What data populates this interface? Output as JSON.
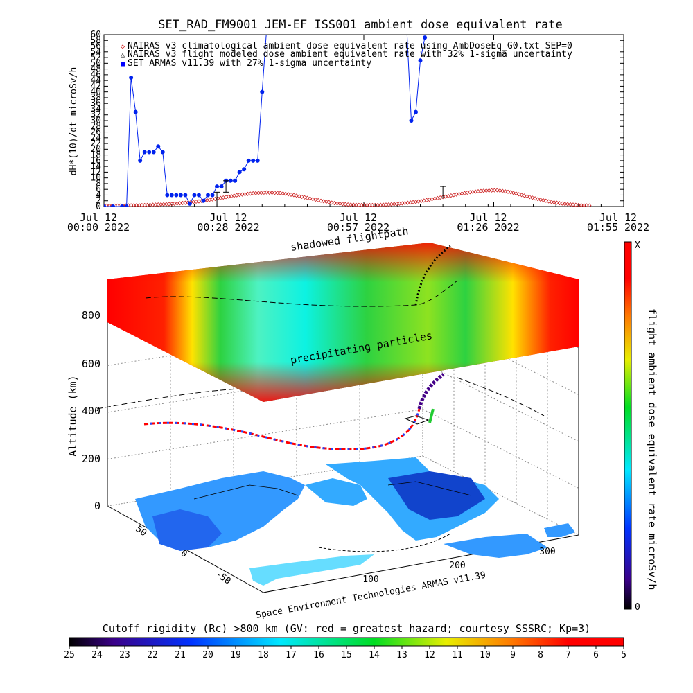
{
  "chart_data": [
    {
      "type": "line",
      "title": "SET_RAD_FM9001  JEM-EF ISS001 ambient dose equivalent rate",
      "ylabel": "dH*(10)/dt microSv/h",
      "ylim": [
        0,
        60
      ],
      "y_ticks": [
        "0",
        "2",
        "4",
        "6",
        "8",
        "10",
        "12",
        "14",
        "16",
        "18",
        "20",
        "22",
        "24",
        "26",
        "28",
        "30",
        "32",
        "34",
        "36",
        "38",
        "40",
        "42",
        "44",
        "46",
        "48",
        "50",
        "52",
        "54",
        "56",
        "58",
        "60"
      ],
      "x_tick_labels": [
        {
          "line1": "Jul 12",
          "line2": "00:00 2022"
        },
        {
          "line1": "Jul 12",
          "line2": "00:28 2022"
        },
        {
          "line1": "Jul 12",
          "line2": "00:57 2022"
        },
        {
          "line1": "Jul 12",
          "line2": "01:26 2022"
        },
        {
          "line1": "Jul 12",
          "line2": "01:55 2022"
        }
      ],
      "xlim_minutes": [
        0,
        115
      ],
      "legend": [
        {
          "symbol": "◇",
          "text": "NAIRAS v3 climatological ambient dose equivalent rate using AmbDoseEq_G0.txt SEP=0",
          "color": "#cc0000"
        },
        {
          "symbol": "△",
          "text": "NAIRAS v3 flight modeled dose ambient equivalent rate with 32% 1-sigma uncertainty",
          "color": "#000000"
        },
        {
          "symbol": "■",
          "text": "SET ARMAS v11.39 with 27% 1-sigma uncertainty",
          "color": "#0000ff"
        }
      ],
      "series": [
        {
          "name": "SET ARMAS v11.39 with 27% 1-sigma uncertainty",
          "color": "#0022ee",
          "x": [
            0,
            2,
            4,
            5,
            6,
            7,
            8,
            9,
            10,
            11,
            12,
            13,
            14,
            15,
            16,
            17,
            18,
            19,
            20,
            21,
            22,
            23,
            24,
            25,
            26,
            27,
            28,
            29,
            30,
            31,
            32,
            33,
            34,
            35,
            36,
            37,
            38,
            39,
            40,
            41,
            42,
            43,
            44,
            45,
            46,
            67,
            68,
            69,
            70,
            71,
            72,
            73
          ],
          "y": [
            0,
            0,
            0,
            0,
            45,
            33,
            16,
            19,
            19,
            19,
            21,
            19,
            4,
            4,
            4,
            4,
            4,
            1,
            4,
            4,
            2,
            4,
            4,
            7,
            7,
            9,
            9,
            9,
            12,
            13,
            16,
            16,
            16,
            40,
            62,
            62,
            62,
            62,
            62,
            62,
            62,
            62,
            62,
            62,
            62,
            62,
            30,
            33,
            51,
            59,
            62,
            62
          ]
        },
        {
          "name": "NAIRAS v3 climatological ambient dose equivalent rate using AmbDoseEq_G0.txt SEP=0",
          "color": "#cc2222",
          "x": [
            0,
            3,
            6,
            9,
            12,
            15,
            18,
            21,
            24,
            27,
            30,
            33,
            36,
            39,
            42,
            45,
            48,
            51,
            54,
            57,
            60,
            63,
            66,
            69,
            72,
            75,
            78,
            81,
            84,
            87,
            90,
            93,
            96,
            99,
            102,
            105,
            108
          ],
          "y": [
            0.3,
            0.3,
            0.4,
            0.5,
            0.7,
            0.9,
            1.3,
            1.8,
            2.5,
            3.3,
            4.1,
            4.6,
            4.9,
            4.7,
            4.0,
            3.0,
            2.0,
            1.2,
            0.7,
            0.5,
            0.5,
            0.7,
            1.1,
            1.6,
            2.4,
            3.3,
            4.2,
            5.0,
            5.5,
            5.7,
            5.0,
            3.8,
            2.6,
            1.6,
            0.9,
            0.5,
            0.3
          ]
        }
      ],
      "error_bars": [
        {
          "x": 25,
          "y": 2,
          "low": 0,
          "high": 5
        },
        {
          "x": 27,
          "y": 7,
          "low": 5,
          "high": 9
        },
        {
          "x": 75,
          "y": 5,
          "low": 3,
          "high": 7
        }
      ]
    },
    {
      "type": "heatmap",
      "zlabel": "Altitude (km)",
      "z_ticks": [
        "0",
        "200",
        "400",
        "600",
        "800"
      ],
      "x_ticks": [
        "100",
        "200",
        "300"
      ],
      "y_ticks": [
        "50",
        "0",
        "-50"
      ],
      "annotations": [
        "shadowed flightpath",
        "precipitating particles"
      ],
      "credit": "Space Environment Technologies ARMAS v11.39",
      "colorbar_right": {
        "label": "flight ambient dose equivalent rate microSv/h",
        "top": "X",
        "bottom": "0"
      },
      "colorbar_bottom": {
        "title": "Cutoff rigidity (Rc) >800 km (GV: red = greatest hazard; courtesy SSSRC; Kp=3)",
        "ticks": [
          "25",
          "24",
          "23",
          "22",
          "21",
          "20",
          "19",
          "18",
          "17",
          "16",
          "15",
          "14",
          "13",
          "12",
          "11",
          "10",
          "9",
          "8",
          "7",
          "6",
          "5"
        ]
      }
    }
  ]
}
